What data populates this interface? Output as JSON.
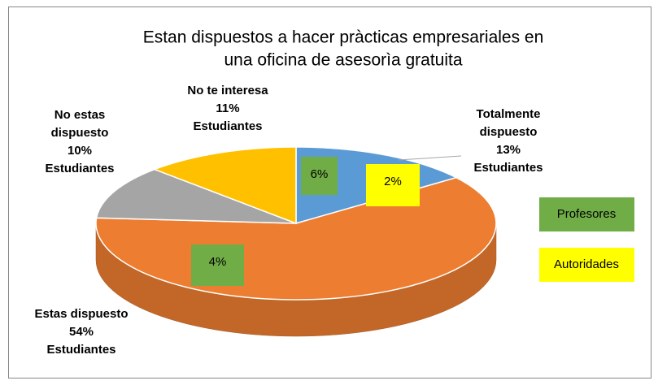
{
  "chart_data": {
    "type": "pie",
    "title": [
      "Estan dispuestos a hacer pràcticas empresariales en",
      "una oficina de asesorìa gratuita"
    ],
    "categories": [
      "Totalmente dispuesto",
      "Estas dispuesto",
      "No estas dispuesto",
      "No te interesa"
    ],
    "series": [
      {
        "name": "Estudiantes",
        "values": [
          13,
          54,
          10,
          11
        ],
        "value_labels": [
          "13%",
          "54%",
          "10%",
          "11%"
        ],
        "colors": [
          "#5b9bd5",
          "#ed7d31",
          "#a5a5a5",
          "#ffc000"
        ]
      },
      {
        "name": "Profesores",
        "color": "#70ad47",
        "values": [
          6,
          4,
          null,
          null
        ],
        "value_labels": [
          "6%",
          "4%",
          null,
          null
        ]
      },
      {
        "name": "Autoridades",
        "color": "#ffff00",
        "values": [
          2,
          null,
          null,
          null
        ],
        "value_labels": [
          "2%",
          null,
          null,
          null
        ]
      }
    ]
  }
}
